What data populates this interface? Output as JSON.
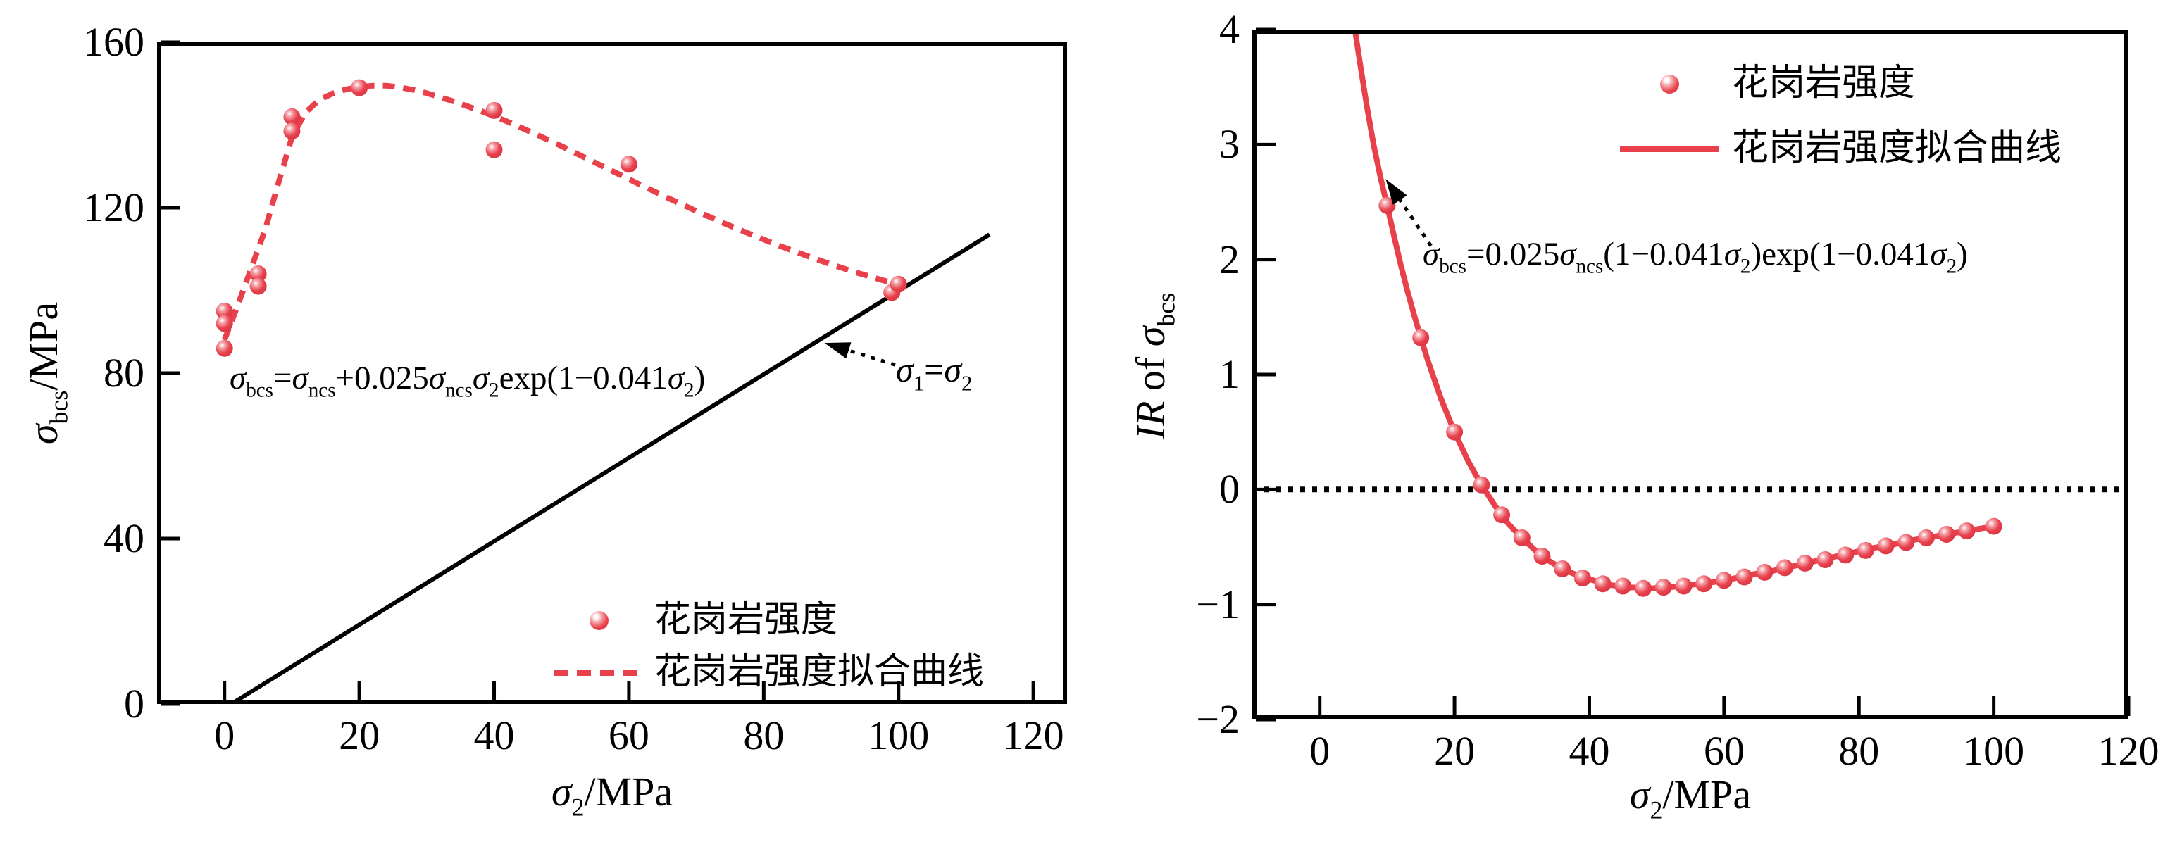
{
  "page": {
    "background": "#ffffff"
  },
  "chart_data": [
    {
      "type": "scatter",
      "panel": "left",
      "xlabel": "σ_{2}/MPa",
      "ylabel": "σ_{bcs}/MPa",
      "xlim": [
        -10,
        125
      ],
      "ylim": [
        0,
        160
      ],
      "xticks": [
        0,
        20,
        40,
        60,
        80,
        100,
        120
      ],
      "yticks": [
        0,
        40,
        80,
        120,
        160
      ],
      "grid": false,
      "legend_position": "inside lower right",
      "accent_color": "#e8414c",
      "axis_color": "#000000",
      "series": [
        {
          "name": "花岗岩强度",
          "kind": "scatter",
          "marker": "ball",
          "color": "#e8414c",
          "points": [
            [
              0,
              95
            ],
            [
              0,
              92
            ],
            [
              0,
              86
            ],
            [
              5,
              104
            ],
            [
              5,
              101
            ],
            [
              10,
              142
            ],
            [
              10,
              138.5
            ],
            [
              20,
              149
            ],
            [
              40,
              143.5
            ],
            [
              40,
              134
            ],
            [
              60,
              130.5
            ],
            [
              99,
              99.5
            ],
            [
              100,
              101.5
            ]
          ]
        },
        {
          "name": "花岗岩强度拟合曲线",
          "kind": "line",
          "dash": "dashed",
          "color": "#e8414c",
          "points": [
            [
              0,
              88
            ],
            [
              2,
              96.5
            ],
            [
              4,
              105.5
            ],
            [
              6,
              114.5
            ],
            [
              8,
              126
            ],
            [
              10,
              137
            ],
            [
              12,
              143
            ],
            [
              14,
              146
            ],
            [
              16,
              147.6
            ],
            [
              18,
              148.6
            ],
            [
              20,
              149.2
            ],
            [
              22,
              149.5
            ],
            [
              24,
              149.5
            ],
            [
              26,
              149.1
            ],
            [
              28,
              148.5
            ],
            [
              30,
              147.7
            ],
            [
              34,
              145.7
            ],
            [
              38,
              143.4
            ],
            [
              42,
              140.8
            ],
            [
              46,
              137.9
            ],
            [
              50,
              134.9
            ],
            [
              54,
              131.7
            ],
            [
              58,
              128.5
            ],
            [
              62,
              125.3
            ],
            [
              66,
              122.2
            ],
            [
              70,
              119.2
            ],
            [
              74,
              116.3
            ],
            [
              78,
              113.6
            ],
            [
              82,
              111
            ],
            [
              86,
              108.6
            ],
            [
              90,
              106.3
            ],
            [
              94,
              104.2
            ],
            [
              98,
              102.3
            ],
            [
              101,
              101
            ]
          ]
        },
        {
          "name": "σ1=σ2参考线",
          "kind": "line",
          "dash": "solid",
          "color": "#000000",
          "points": [
            [
              1,
              0
            ],
            [
              113.5,
              113.5
            ]
          ]
        }
      ],
      "annotations": [
        {
          "id": "fit-equation",
          "text": "σ_{bcs}=σ_{ncs}+0.025σ_{ncs}σ_{2}exp(1−0.041σ_{2})"
        },
        {
          "id": "line-label",
          "text": "σ_{1}=σ_{2}"
        }
      ],
      "arrows": [
        {
          "from": [
            99.5,
            82
          ],
          "to": [
            89,
            87.3
          ],
          "style": "dotted"
        }
      ],
      "legend": [
        {
          "swatch": "ball",
          "label": "花岗岩强度"
        },
        {
          "swatch": "dashed-line",
          "label": "花岗岩强度拟合曲线"
        }
      ]
    },
    {
      "type": "line",
      "panel": "right",
      "xlabel": "σ_{2}/MPa",
      "ylabel": "*IR* of σ_{bcs}",
      "xlim": [
        -10,
        120
      ],
      "ylim": [
        -2,
        4
      ],
      "xticks": [
        0,
        20,
        40,
        60,
        80,
        100,
        120
      ],
      "yticks": [
        -2,
        -1,
        0,
        1,
        2,
        3,
        4
      ],
      "grid": false,
      "legend_position": "inside upper right",
      "accent_color": "#e8414c",
      "axis_color": "#000000",
      "series": [
        {
          "name": "花岗岩强度",
          "kind": "scatter",
          "marker": "ball",
          "color": "#e8414c",
          "points": [
            [
              5,
              4.09
            ],
            [
              10,
              2.47
            ],
            [
              15,
              1.32
            ],
            [
              20,
              0.5
            ],
            [
              24,
              0.04
            ],
            [
              27,
              -0.22
            ],
            [
              30,
              -0.42
            ],
            [
              33,
              -0.58
            ],
            [
              36,
              -0.69
            ],
            [
              39,
              -0.77
            ],
            [
              42,
              -0.82
            ],
            [
              45,
              -0.84
            ],
            [
              48,
              -0.86
            ],
            [
              51,
              -0.85
            ],
            [
              54,
              -0.84
            ],
            [
              57,
              -0.82
            ],
            [
              60,
              -0.79
            ],
            [
              63,
              -0.76
            ],
            [
              66,
              -0.72
            ],
            [
              69,
              -0.68
            ],
            [
              72,
              -0.64
            ],
            [
              75,
              -0.61
            ],
            [
              78,
              -0.57
            ],
            [
              81,
              -0.53
            ],
            [
              84,
              -0.49
            ],
            [
              87,
              -0.46
            ],
            [
              90,
              -0.42
            ],
            [
              93,
              -0.39
            ],
            [
              96,
              -0.36
            ],
            [
              100,
              -0.32
            ]
          ]
        },
        {
          "name": "花岗岩强度拟合曲线",
          "kind": "line",
          "dash": "solid",
          "color": "#e8414c",
          "points": [
            [
              4.4,
              4.35
            ],
            [
              5,
              4.09
            ],
            [
              6,
              3.7
            ],
            [
              7,
              3.33
            ],
            [
              8,
              3.0
            ],
            [
              9,
              2.72
            ],
            [
              10,
              2.47
            ],
            [
              11,
              2.21
            ],
            [
              12,
              1.96
            ],
            [
              13,
              1.73
            ],
            [
              14,
              1.52
            ],
            [
              15,
              1.32
            ],
            [
              16,
              1.13
            ],
            [
              18,
              0.79
            ],
            [
              20,
              0.5
            ],
            [
              22,
              0.25
            ],
            [
              24,
              0.04
            ],
            [
              26,
              -0.14
            ],
            [
              28,
              -0.3
            ],
            [
              30,
              -0.42
            ],
            [
              32,
              -0.53
            ],
            [
              34,
              -0.62
            ],
            [
              36,
              -0.69
            ],
            [
              38,
              -0.74
            ],
            [
              40,
              -0.78
            ],
            [
              43,
              -0.83
            ],
            [
              46,
              -0.85
            ],
            [
              49,
              -0.86
            ],
            [
              52,
              -0.85
            ],
            [
              55,
              -0.83
            ],
            [
              58,
              -0.81
            ],
            [
              61,
              -0.78
            ],
            [
              64,
              -0.74
            ],
            [
              67,
              -0.71
            ],
            [
              70,
              -0.67
            ],
            [
              73,
              -0.63
            ],
            [
              76,
              -0.59
            ],
            [
              79,
              -0.55
            ],
            [
              82,
              -0.51
            ],
            [
              85,
              -0.48
            ],
            [
              88,
              -0.44
            ],
            [
              91,
              -0.41
            ],
            [
              94,
              -0.38
            ],
            [
              97,
              -0.35
            ],
            [
              100,
              -0.32
            ]
          ]
        },
        {
          "name": "零参考线",
          "kind": "line",
          "dash": "dotted",
          "color": "#000000",
          "points": [
            [
              -10,
              0
            ],
            [
              120,
              0
            ]
          ]
        }
      ],
      "annotations": [
        {
          "id": "fit-equation",
          "text": "σ_{bcs}=0.025σ_{ncs}(1−0.041σ_{2})exp(1−0.041σ_{2})"
        }
      ],
      "arrows": [
        {
          "from": [
            16.5,
            2.12
          ],
          "to": [
            9.8,
            2.7
          ],
          "style": "dotted"
        }
      ],
      "legend": [
        {
          "swatch": "ball",
          "label": "花岗岩强度"
        },
        {
          "swatch": "solid-line",
          "label": "花岗岩强度拟合曲线"
        }
      ]
    }
  ]
}
